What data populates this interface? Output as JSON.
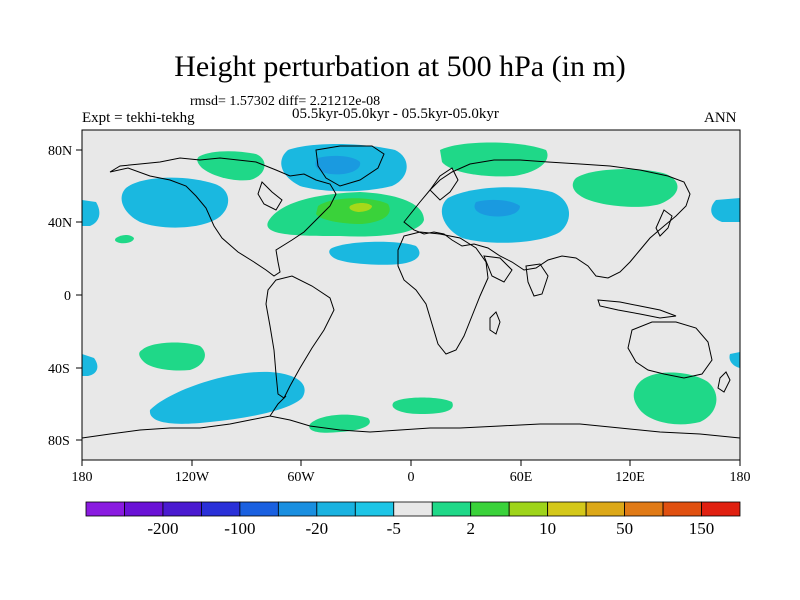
{
  "title": "Height perturbation at 500 hPa (in m)",
  "stats": "rmsd= 1.57302 diff= 2.21212e-08",
  "expt": "Expt = tekhi-tekhg",
  "period": "05.5kyr-05.0kyr - 05.5kyr-05.0kyr",
  "season": "ANN",
  "lat_ticks": [
    "80N",
    "40N",
    "0",
    "40S",
    "80S"
  ],
  "lon_ticks": [
    "180",
    "120W",
    "60W",
    "0",
    "60E",
    "120E",
    "180"
  ],
  "colorbar": {
    "colors": [
      "#8a1be0",
      "#6a12d6",
      "#4a1ad0",
      "#2a30d8",
      "#1a60e0",
      "#1a8fe0",
      "#1ab2e0",
      "#1dc5e6",
      "#e8e8e8",
      "#1fd888",
      "#3ad23a",
      "#9ed41a",
      "#d4c81a",
      "#dca818",
      "#e07a16",
      "#e05010",
      "#e02010"
    ],
    "labels": [
      "-200",
      "-100",
      "-20",
      "-5",
      "2",
      "10",
      "50",
      "150"
    ],
    "label_values": [
      -200,
      -100,
      -20,
      -5,
      2,
      10,
      50,
      150
    ]
  },
  "map_colors": {
    "background": "#e8e8e8",
    "cyan": "#1ab8e0",
    "mid_blue": "#1a9ae0",
    "green": "#1fd888",
    "bright_green": "#3ad23a",
    "yellow_green": "#a6d81a"
  }
}
